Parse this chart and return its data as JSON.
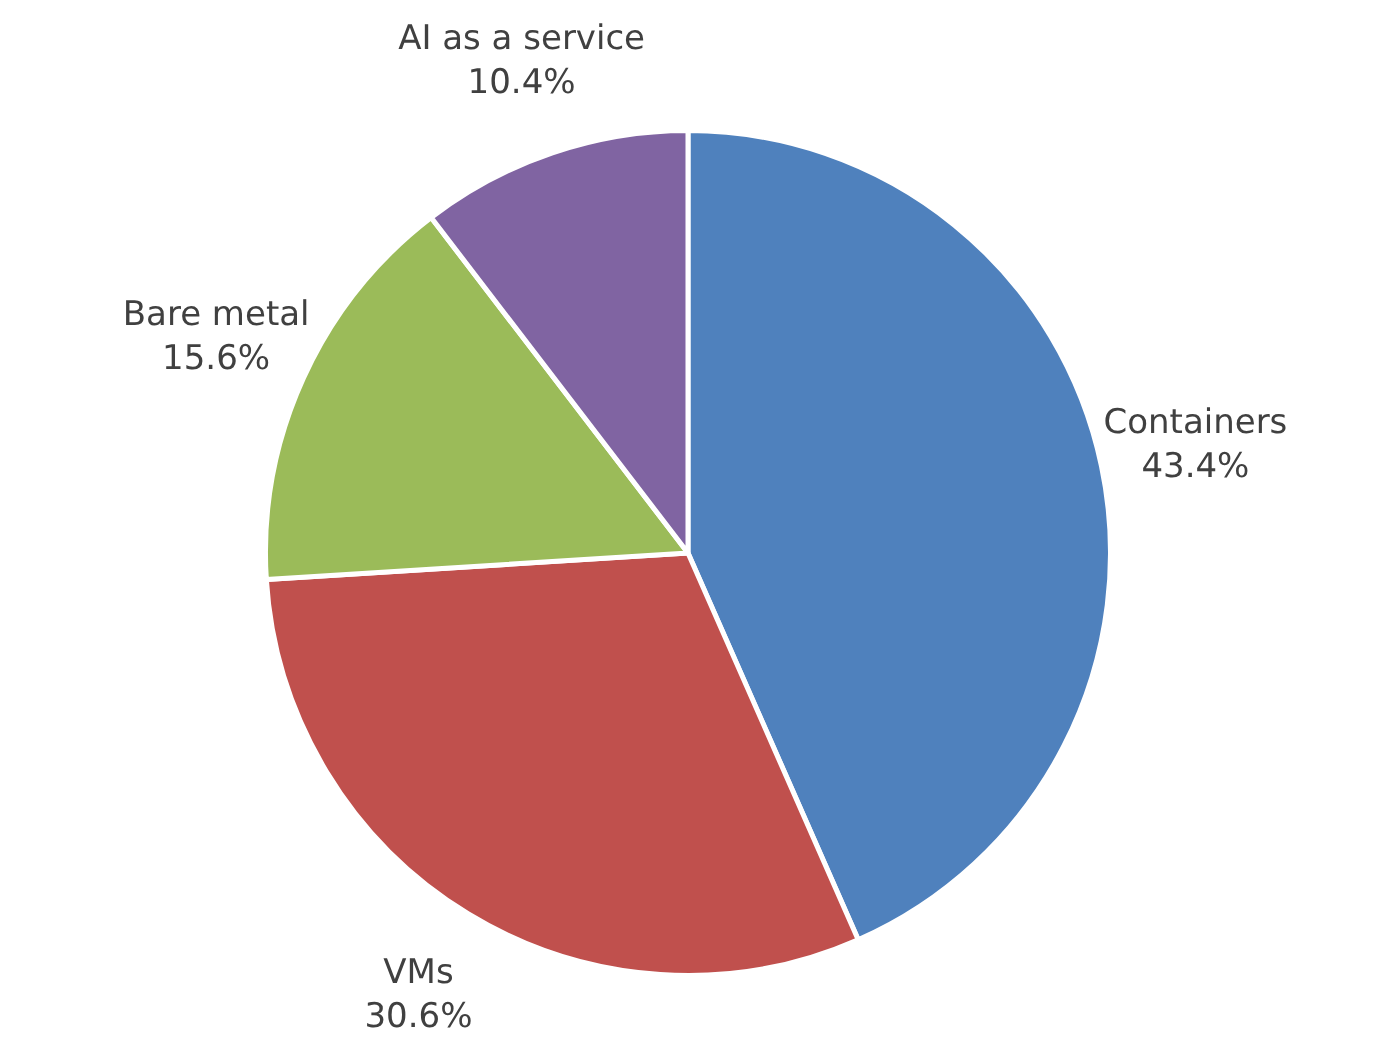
{
  "chart_data": {
    "type": "pie",
    "categories": [
      "Containers",
      "VMs",
      "Bare metal",
      "AI as a service"
    ],
    "values": [
      43.4,
      30.6,
      15.6,
      10.4
    ],
    "value_labels": [
      "43.4%",
      "30.6%",
      "15.6%",
      "10.4%"
    ],
    "colors": [
      "#4f81bd",
      "#c0504d",
      "#9bbb59",
      "#8064a2"
    ],
    "legend": false
  }
}
